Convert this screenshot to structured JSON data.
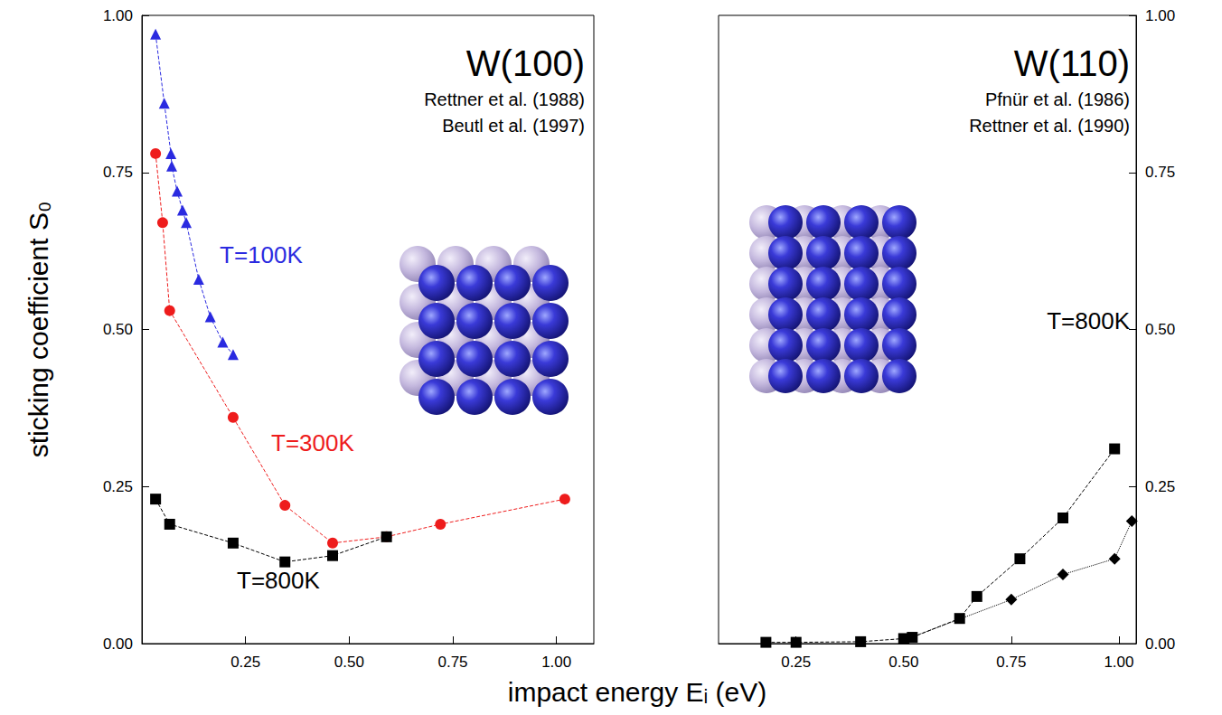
{
  "chart_data": [
    {
      "type": "line",
      "title": "W(100)",
      "annotations": [
        "Rettner et al. (1988)",
        "Beutl et al. (1997)"
      ],
      "xlabel": "impact energy Eᵢ (eV)",
      "ylabel": "sticking coefficient S₀",
      "xlim": [
        0,
        1.09
      ],
      "xticks": [
        {
          "value": 0.25,
          "label": "0.25"
        },
        {
          "value": 0.5,
          "label": "0.50"
        },
        {
          "value": 0.75,
          "label": "0.75"
        },
        {
          "value": 1,
          "label": "1.00"
        }
      ],
      "ylim": [
        0,
        1
      ],
      "yticks": [
        {
          "value": 0,
          "label": "0.00"
        },
        {
          "value": 0.25,
          "label": "0.25"
        },
        {
          "value": 0.5,
          "label": "0.50"
        },
        {
          "value": 0.75,
          "label": "0.75"
        },
        {
          "value": 1,
          "label": "1.00"
        }
      ],
      "grid": false,
      "series": [
        {
          "name": "T=100K",
          "color": "#2a2ae0",
          "marker": "triangle",
          "line_style": "dashed",
          "x": [
            0.033,
            0.054,
            0.07,
            0.072,
            0.085,
            0.098,
            0.107,
            0.137,
            0.165,
            0.195,
            0.22
          ],
          "values": [
            0.97,
            0.86,
            0.78,
            0.76,
            0.72,
            0.69,
            0.67,
            0.58,
            0.52,
            0.48,
            0.46
          ]
        },
        {
          "name": "T=300K",
          "color": "#ee1c1c",
          "marker": "circle",
          "line_style": "dashed",
          "x": [
            0.033,
            0.05,
            0.067,
            0.22,
            0.345,
            0.46,
            0.59,
            0.72,
            1.02
          ],
          "values": [
            0.78,
            0.67,
            0.53,
            0.36,
            0.22,
            0.16,
            0.17,
            0.19,
            0.23
          ]
        },
        {
          "name": "T=800K",
          "color": "#000000",
          "marker": "square",
          "line_style": "dashed",
          "x": [
            0.033,
            0.067,
            0.22,
            0.345,
            0.46,
            0.59
          ],
          "values": [
            0.23,
            0.19,
            0.16,
            0.13,
            0.14,
            0.17
          ]
        }
      ]
    },
    {
      "type": "line",
      "title": "W(110)",
      "annotations": [
        "Pfnür et al. (1986)",
        "Rettner et al. (1990)"
      ],
      "xlim": [
        0.07,
        1.04
      ],
      "xticks": [
        {
          "value": 0.25,
          "label": "0.25"
        },
        {
          "value": 0.5,
          "label": "0.50"
        },
        {
          "value": 0.75,
          "label": "0.75"
        },
        {
          "value": 1,
          "label": "1.00"
        }
      ],
      "ylim": [
        0,
        1
      ],
      "yticks": [
        {
          "value": 0,
          "label": "0.00"
        },
        {
          "value": 0.25,
          "label": "0.25"
        },
        {
          "value": 0.5,
          "label": "0.50"
        },
        {
          "value": 0.75,
          "label": "0.75"
        },
        {
          "value": 1,
          "label": "1.00"
        }
      ],
      "grid": false,
      "series": [
        {
          "name": "T=800K",
          "color": "#000000",
          "marker": "square",
          "line_style": "dashed",
          "x": [
            0.18,
            0.25,
            0.4,
            0.5,
            0.52,
            0.63,
            0.67,
            0.77,
            0.87,
            0.99
          ],
          "values": [
            0.002,
            0.002,
            0.003,
            0.008,
            0.01,
            0.04,
            0.075,
            0.135,
            0.2,
            0.31
          ]
        },
        {
          "color": "#000000",
          "marker": "diamond",
          "line_style": "dotted",
          "x": [
            0.51,
            0.75,
            0.87,
            0.99,
            1.03
          ],
          "values": [
            0.008,
            0.07,
            0.11,
            0.135,
            0.195
          ]
        }
      ]
    }
  ]
}
